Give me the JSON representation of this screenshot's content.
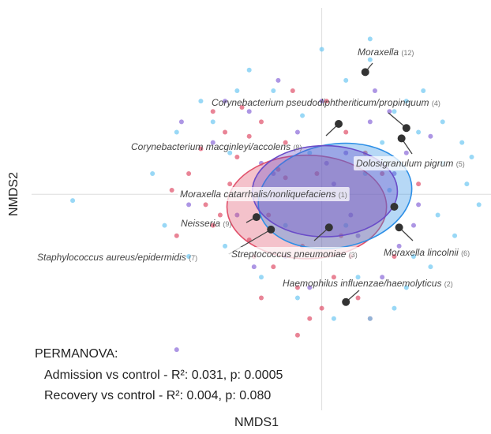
{
  "chart_data": {
    "type": "scatter",
    "xlabel": "NMDS1",
    "ylabel": "NMDS2",
    "xlim": [
      -1.2,
      0.7
    ],
    "ylim": [
      -0.7,
      0.9
    ],
    "series": [
      {
        "color": "#e0506a",
        "x": [
          -0.55,
          -0.48,
          -0.62,
          -0.4,
          -0.35,
          -0.3,
          -0.25,
          -0.45,
          -0.2,
          -0.15,
          -0.1,
          -0.05,
          0.0,
          0.05,
          -0.38,
          -0.28,
          -0.18,
          -0.08,
          0.02,
          0.12,
          0.2,
          0.25,
          -0.5,
          -0.42,
          -0.33,
          -0.12,
          -0.22,
          0.08,
          0.15,
          -0.3,
          -0.6,
          -0.02,
          0.3,
          0.4,
          -0.1,
          -0.25,
          0.1,
          -0.15,
          0.18,
          -0.45
        ],
        "values": [
          0.1,
          -0.05,
          0.02,
          0.3,
          0.18,
          -0.22,
          0.35,
          -0.15,
          -0.35,
          0.25,
          -0.45,
          -0.6,
          -0.55,
          -0.4,
          0.05,
          -0.3,
          0.12,
          -0.25,
          0.45,
          -0.3,
          -0.6,
          0.1,
          0.22,
          -0.1,
          0.42,
          0.5,
          -0.1,
          -0.2,
          -0.5,
          0.28,
          -0.2,
          0.1,
          -0.3,
          0.05,
          -0.68,
          -0.5,
          0.3,
          0.08,
          0.2,
          0.4
        ]
      },
      {
        "color": "#8a6ad8",
        "x": [
          -0.45,
          -0.3,
          -0.2,
          -0.1,
          0.0,
          0.1,
          0.2,
          0.3,
          0.4,
          -0.35,
          -0.25,
          -0.15,
          0.05,
          0.15,
          0.25,
          0.35,
          -0.4,
          -0.05,
          0.22,
          0.45,
          -0.55,
          -0.18,
          0.12,
          0.32,
          -0.28,
          0.02,
          0.28,
          -0.58,
          0.38,
          -0.6
        ],
        "values": [
          0.25,
          0.4,
          0.1,
          0.3,
          0.45,
          0.2,
          0.35,
          0.1,
          -0.05,
          -0.1,
          0.15,
          -0.3,
          0.05,
          -0.2,
          -0.4,
          0.2,
          0.45,
          -0.45,
          0.5,
          0.28,
          -0.05,
          0.55,
          -0.1,
          -0.25,
          -0.35,
          0.15,
          0.4,
          0.35,
          -0.15,
          -0.75
        ]
      },
      {
        "color": "#6ec8f2",
        "x": [
          -1.03,
          -0.7,
          -0.6,
          -0.5,
          -0.4,
          -0.3,
          -0.2,
          -0.1,
          0.0,
          0.1,
          0.2,
          0.3,
          0.4,
          0.5,
          0.6,
          0.55,
          0.45,
          0.35,
          0.25,
          0.15,
          0.05,
          -0.05,
          -0.15,
          -0.25,
          -0.35,
          -0.45,
          -0.55,
          0.2,
          0.65,
          0.5,
          0.42,
          0.28,
          0.1,
          -0.08,
          0.3,
          0.48,
          0.58,
          0.38,
          0.18,
          -0.38,
          0.2,
          0.35,
          0.62,
          -0.65
        ],
        "values": [
          -0.03,
          0.1,
          0.3,
          0.45,
          -0.25,
          0.6,
          0.5,
          -0.5,
          0.7,
          0.55,
          -0.6,
          0.4,
          0.3,
          0.15,
          0.05,
          -0.2,
          -0.35,
          -0.45,
          0.25,
          -0.4,
          -0.6,
          0.2,
          -0.15,
          -0.4,
          0.5,
          0.35,
          -0.3,
          0.65,
          -0.05,
          0.35,
          0.5,
          0.02,
          -0.15,
          0.38,
          -0.55,
          -0.1,
          0.25,
          -0.3,
          0.1,
          0.2,
          0.75,
          0.45,
          0.18,
          -0.15
        ]
      }
    ],
    "ellipses": [
      {
        "cx": -0.062,
        "cy": -0.061,
        "rx": 0.33,
        "ry": 0.25,
        "angle": 0,
        "color": "#e0506a"
      },
      {
        "cx": 0.055,
        "cy": -0.008,
        "rx": 0.32,
        "ry": 0.25,
        "angle": -10,
        "color": "#2d8fe6"
      },
      {
        "cx": 0.013,
        "cy": 0.015,
        "rx": 0.3,
        "ry": 0.22,
        "angle": 0,
        "color": "#6a4cc8"
      }
    ],
    "species": [
      {
        "name": "Moraxella",
        "tag": "(12)",
        "x": 0.18,
        "y": 0.59
      },
      {
        "name": "Corynebacterium pseudodiphtheriticum/propinquum",
        "tag": "(4)",
        "x": 0.35,
        "y": 0.32
      },
      {
        "name": "Corynebacterium macginleyi/accolens",
        "tag": "(8)",
        "x": 0.07,
        "y": 0.34
      },
      {
        "name": "Dolosigranulum pigrum",
        "tag": "(5)",
        "x": 0.33,
        "y": 0.27
      },
      {
        "name": "Moraxella catarrhalis/nonliquefaciens",
        "tag": "(1)",
        "x": 0.3,
        "y": -0.06
      },
      {
        "name": "Neisseria",
        "tag": "(9)",
        "x": -0.27,
        "y": -0.11
      },
      {
        "name": "Staphylococcus aureus/epidermidis",
        "tag": "(7)",
        "x": -0.21,
        "y": -0.17
      },
      {
        "name": "Streptococcus pneumoniae",
        "tag": "(3)",
        "x": 0.03,
        "y": -0.16
      },
      {
        "name": "Moraxella lincolnii",
        "tag": "(6)",
        "x": 0.32,
        "y": -0.16
      },
      {
        "name": "Haemophilus influenzae/haemolyticus",
        "tag": "(2)",
        "x": 0.1,
        "y": -0.52
      }
    ],
    "annotations": [
      "PERMANOVA:",
      "Admission vs control - R²: 0.031, p: 0.0005",
      "Recovery vs control - R²: 0.004, p: 0.080"
    ]
  }
}
